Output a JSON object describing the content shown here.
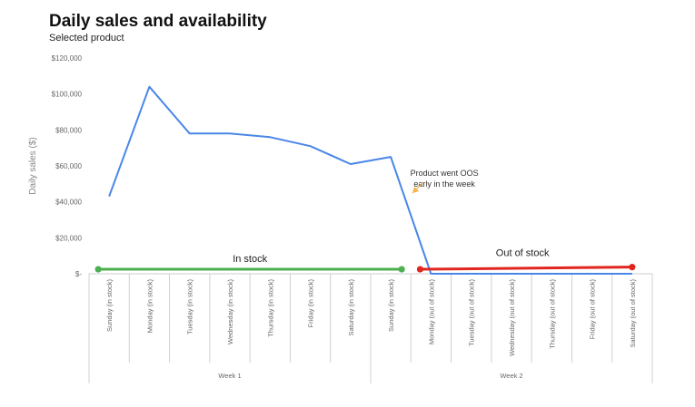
{
  "chart_data": {
    "type": "line",
    "title": "Daily sales and availability",
    "subtitle": "Selected product",
    "ylabel": "Daily sales ($)",
    "xlabel": "",
    "ylim": [
      0,
      120000
    ],
    "yticks": [
      "$-",
      "$20,000",
      "$40,000",
      "$60,000",
      "$80,000",
      "$100,000",
      "$120,000"
    ],
    "ytick_values": [
      0,
      20000,
      40000,
      60000,
      80000,
      100000,
      120000
    ],
    "grid": false,
    "categories": [
      "Sunday (in stock)",
      "Monday (in stock)",
      "Tuesday (in stock)",
      "Wednesday (in stock)",
      "Thursday (in stock)",
      "Friday (in stock)",
      "Saturday (in stock)",
      "Sunday (in stock)",
      "Monday (out of stock)",
      "Tuesday (out of stock)",
      "Wednesday (out of stock)",
      "Thursday (out of stock)",
      "Friday (out of stock)",
      "Saturday (out of stock)"
    ],
    "groups": [
      {
        "label": "Week 1",
        "start": 0,
        "end": 6
      },
      {
        "label": "Week 2",
        "start": 7,
        "end": 13
      }
    ],
    "series": [
      {
        "values": [
          43000,
          104000,
          78000,
          78000,
          76000,
          71000,
          61000,
          65000,
          0,
          0,
          0,
          0,
          0,
          0
        ],
        "color": "#4a86e8"
      }
    ],
    "availability": [
      {
        "label": "In stock",
        "from": 0,
        "to": 7,
        "y": 2500,
        "color": "#4caf50"
      },
      {
        "label": "Out of stock",
        "from": 8,
        "to": 13,
        "y_from": 2500,
        "y_to": 3700,
        "color": "#e0261f"
      }
    ],
    "annotation": {
      "lines": [
        "Product went OOS",
        "early in the week"
      ],
      "color": "#f4b247"
    }
  }
}
